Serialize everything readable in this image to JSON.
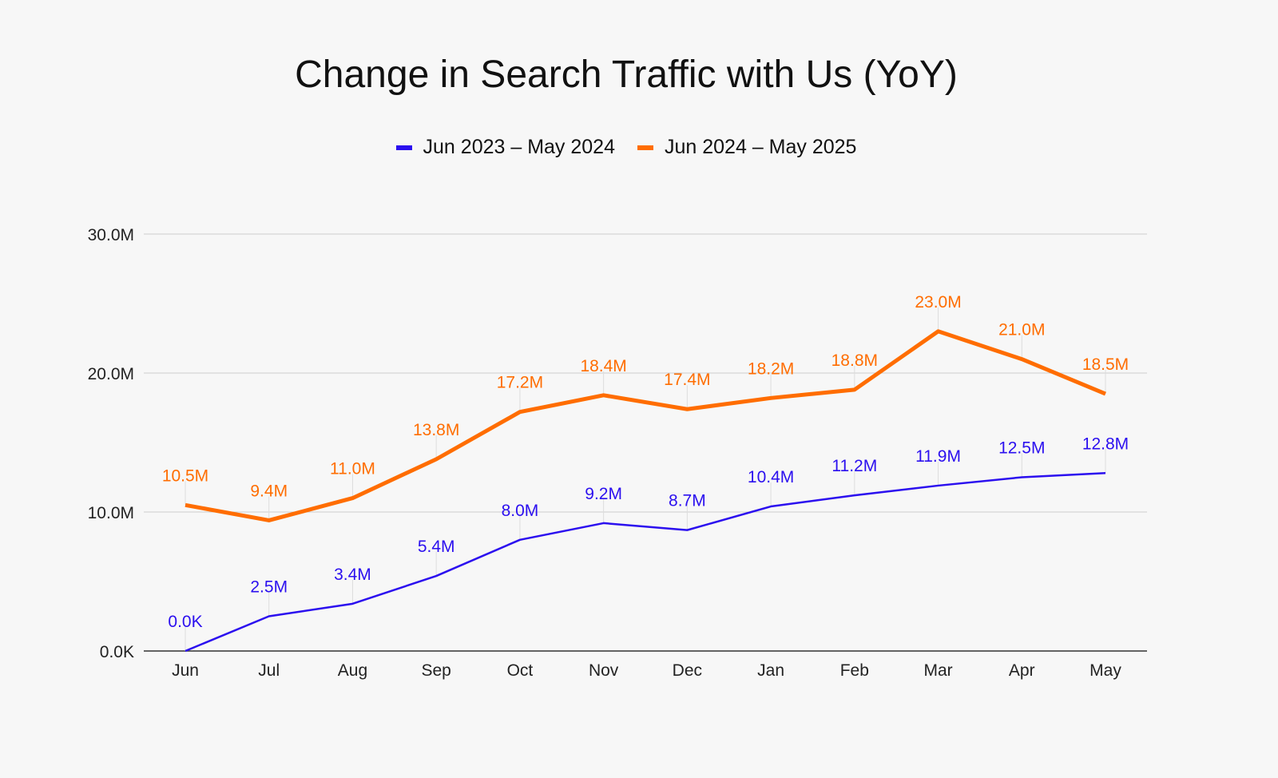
{
  "chart_data": {
    "type": "line",
    "title": "Change in Search Traffic with Us (YoY)",
    "xlabel": "",
    "ylabel": "",
    "categories": [
      "Jun",
      "Jul",
      "Aug",
      "Sep",
      "Oct",
      "Nov",
      "Dec",
      "Jan",
      "Feb",
      "Mar",
      "Apr",
      "May"
    ],
    "ylim": [
      0,
      30
    ],
    "yticks": [
      0,
      10,
      20,
      30
    ],
    "ytick_labels": [
      "0.0K",
      "10.0M",
      "20.0M",
      "30.0M"
    ],
    "grid": true,
    "legend_position": "top-center",
    "series": [
      {
        "name": "Jun 2023 – May 2024",
        "color": "#2b0fef",
        "values": [
          0,
          2.5,
          3.4,
          5.4,
          8.0,
          9.2,
          8.7,
          10.4,
          11.2,
          11.9,
          12.5,
          12.8
        ],
        "labels": [
          "0.0K",
          "2.5M",
          "3.4M",
          "5.4M",
          "8.0M",
          "9.2M",
          "8.7M",
          "10.4M",
          "11.2M",
          "11.9M",
          "12.5M",
          "12.8M"
        ]
      },
      {
        "name": "Jun 2024 – May 2025",
        "color": "#ff6d00",
        "values": [
          10.5,
          9.4,
          11.0,
          13.8,
          17.2,
          18.4,
          17.4,
          18.2,
          18.8,
          23.0,
          21.0,
          18.5
        ],
        "labels": [
          "10.5M",
          "9.4M",
          "11.0M",
          "13.8M",
          "17.2M",
          "18.4M",
          "17.4M",
          "18.2M",
          "18.8M",
          "23.0M",
          "21.0M",
          "18.5M"
        ]
      }
    ]
  }
}
